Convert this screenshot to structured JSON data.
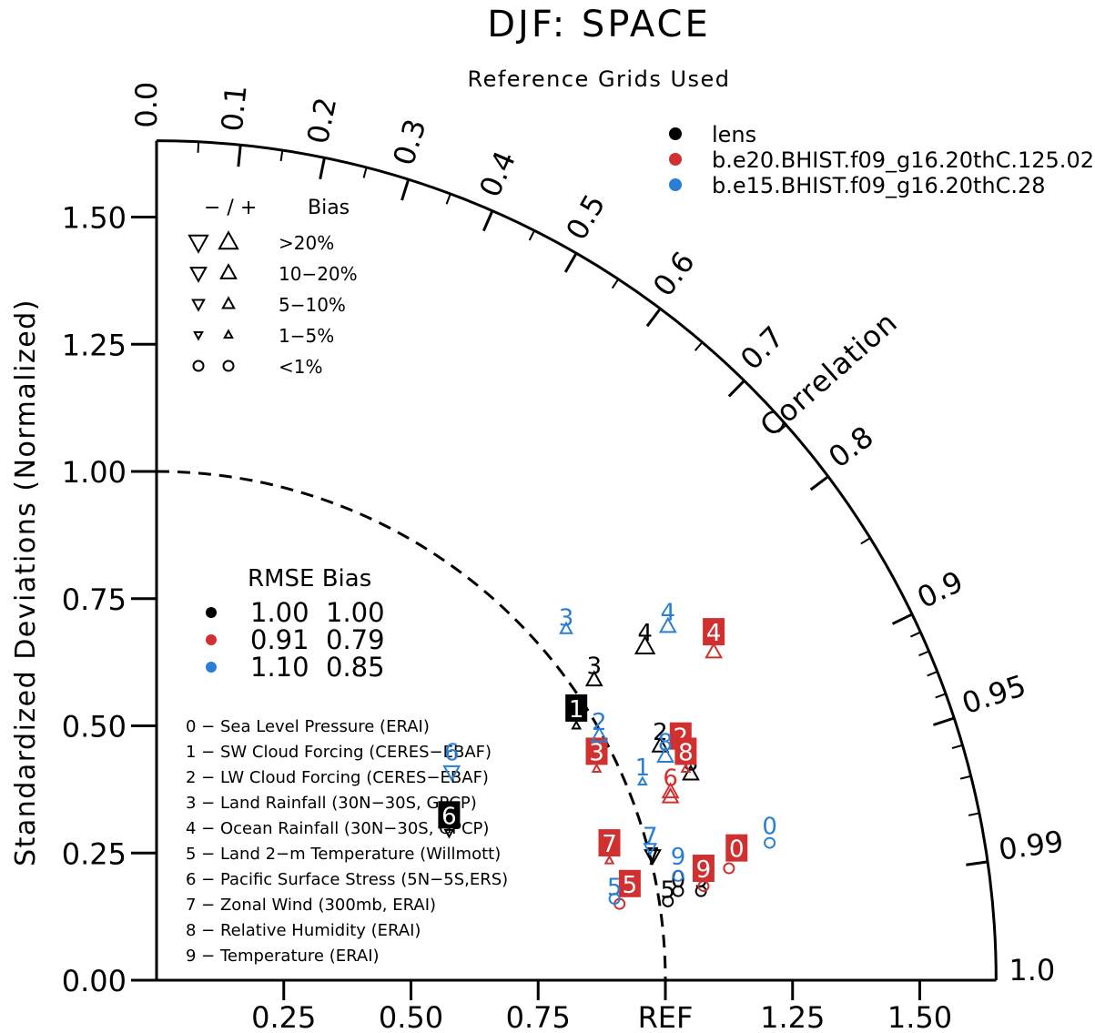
{
  "chart_data": {
    "type": "taylor",
    "title": "DJF: SPACE",
    "subtitle": "Reference Grids Used",
    "ylabel": "Standardized Deviations (Normalized)",
    "xlabel": "",
    "radial_label": "Correlation",
    "ref_label": "REF",
    "std_ylim": [
      0,
      1.65
    ],
    "y_ticks": [
      "0.00",
      "0.25",
      "0.50",
      "0.75",
      "1.00",
      "1.25",
      "1.50"
    ],
    "x_ticks": [
      "0.25",
      "0.50",
      "0.75",
      "REF",
      "1.25",
      "1.50"
    ],
    "corr_ticks": [
      {
        "value": 0.0,
        "label": "0.0"
      },
      {
        "value": 0.1,
        "label": "0.1"
      },
      {
        "value": 0.2,
        "label": "0.2"
      },
      {
        "value": 0.3,
        "label": "0.3"
      },
      {
        "value": 0.4,
        "label": "0.4"
      },
      {
        "value": 0.5,
        "label": "0.5"
      },
      {
        "value": 0.6,
        "label": "0.6"
      },
      {
        "value": 0.7,
        "label": "0.7"
      },
      {
        "value": 0.8,
        "label": "0.8"
      },
      {
        "value": 0.9,
        "label": "0.9"
      },
      {
        "value": 0.95,
        "label": "0.95"
      },
      {
        "value": 0.99,
        "label": "0.99"
      },
      {
        "value": 1.0,
        "label": "1.0"
      }
    ],
    "series": [
      {
        "name": "lens",
        "color": "#000000"
      },
      {
        "name": "b.e20.BHIST.f09_g16.20thC.125.02",
        "color": "#d03030"
      },
      {
        "name": "b.e15.BHIST.f09_g16.20thC.28",
        "color": "#2a7fd4"
      }
    ],
    "bias_legend": {
      "header_symbols": "− / +",
      "header_label": "Bias",
      "rows": [
        {
          "label": ">20%",
          "shape": "triangle",
          "size": 1.0
        },
        {
          "label": "10−20%",
          "shape": "triangle",
          "size": 0.82
        },
        {
          "label": "5−10%",
          "shape": "triangle",
          "size": 0.62
        },
        {
          "label": "1−5%",
          "shape": "triangle",
          "size": 0.42
        },
        {
          "label": "<1%",
          "shape": "circle",
          "size": 0.55
        }
      ]
    },
    "rmse_table": {
      "header": "RMSE Bias",
      "rows": [
        {
          "color": "#000000",
          "rmse": "1.00",
          "bias": "1.00"
        },
        {
          "color": "#d03030",
          "rmse": "0.91",
          "bias": "0.79"
        },
        {
          "color": "#2a7fd4",
          "rmse": "1.10",
          "bias": "0.85"
        }
      ]
    },
    "variables": [
      "0 − Sea Level Pressure (ERAI)",
      "1 − SW Cloud Forcing (CERES−EBAF)",
      "2 − LW Cloud Forcing (CERES−EBAF)",
      "3 − Land Rainfall (30N−30S, GPCP)",
      "4 − Ocean Rainfall (30N−30S, GPCP)",
      "5 − Land 2−m Temperature (Willmott)",
      "6 − Pacific Surface Stress (5N−5S,ERS)",
      "7 − Zonal Wind (300mb, ERAI)",
      "8 − Relative Humidity (ERAI)",
      "9 − Temperature (ERAI)"
    ],
    "points": [
      {
        "series": 0,
        "label": "1",
        "x": 0.825,
        "y": 0.535,
        "boxed": true,
        "sym": "up",
        "size": 0.42,
        "sx": 0.825,
        "sy": 0.5
      },
      {
        "series": 0,
        "label": "2",
        "x": 0.99,
        "y": 0.49,
        "boxed": false,
        "sym": "up",
        "size": 0.82,
        "sx": 0.99,
        "sy": 0.46
      },
      {
        "series": 0,
        "label": "3",
        "x": 0.86,
        "y": 0.62,
        "boxed": false,
        "sym": "up",
        "size": 0.82,
        "sx": 0.86,
        "sy": 0.59
      },
      {
        "series": 0,
        "label": "4",
        "x": 0.96,
        "y": 0.685,
        "boxed": false,
        "sym": "up",
        "size": 1.0,
        "sx": 0.96,
        "sy": 0.655
      },
      {
        "series": 0,
        "label": "5",
        "x": 1.005,
        "y": 0.18,
        "boxed": false,
        "sym": "circle",
        "size": 0.55,
        "sx": 1.005,
        "sy": 0.155
      },
      {
        "series": 0,
        "label": "6",
        "x": 0.575,
        "y": 0.325,
        "boxed": true,
        "sym": "down",
        "size": 0.42,
        "sx": 0.575,
        "sy": 0.29
      },
      {
        "series": 0,
        "label": "7",
        "x": 0.975,
        "y": 0.245,
        "boxed": false,
        "sym": "down",
        "size": 0.82,
        "sx": 0.975,
        "sy": 0.245
      },
      {
        "series": 0,
        "label": "8",
        "x": 1.05,
        "y": 0.43,
        "boxed": false,
        "sym": "up",
        "size": 0.82,
        "sx": 1.05,
        "sy": 0.405
      },
      {
        "series": 0,
        "label": "9",
        "x": 1.07,
        "y": 0.2,
        "boxed": false,
        "sym": "circle",
        "size": 0.55,
        "sx": 1.07,
        "sy": 0.175
      },
      {
        "series": 0,
        "label": "0",
        "x": 1.025,
        "y": 0.2,
        "boxed": false,
        "sym": "circle",
        "size": 0.55,
        "sx": 1.025,
        "sy": 0.175
      },
      {
        "series": 1,
        "label": "0",
        "x": 1.14,
        "y": 0.26,
        "boxed": true,
        "sym": "circle",
        "size": 0.55,
        "sx": 1.125,
        "sy": 0.22
      },
      {
        "series": 1,
        "label": "2",
        "x": 1.03,
        "y": 0.48,
        "boxed": true,
        "sym": "up",
        "size": 0.82,
        "sx": 1.01,
        "sy": 0.37
      },
      {
        "series": 1,
        "label": "3",
        "x": 0.865,
        "y": 0.45,
        "boxed": true,
        "sym": "up",
        "size": 0.42,
        "sx": 0.865,
        "sy": 0.415
      },
      {
        "series": 1,
        "label": "4",
        "x": 1.095,
        "y": 0.685,
        "boxed": true,
        "sym": "up",
        "size": 0.82,
        "sx": 1.095,
        "sy": 0.645
      },
      {
        "series": 1,
        "label": "5",
        "x": 0.93,
        "y": 0.19,
        "boxed": true,
        "sym": "circle",
        "size": 0.55,
        "sx": 0.91,
        "sy": 0.15
      },
      {
        "series": 1,
        "label": "6",
        "x": 1.01,
        "y": 0.4,
        "boxed": false,
        "sym": "up",
        "size": 0.82,
        "sx": 1.01,
        "sy": 0.36
      },
      {
        "series": 1,
        "label": "7",
        "x": 0.89,
        "y": 0.27,
        "boxed": true,
        "sym": "up",
        "size": 0.42,
        "sx": 0.89,
        "sy": 0.235
      },
      {
        "series": 1,
        "label": "8",
        "x": 1.04,
        "y": 0.45,
        "boxed": true,
        "sym": "up",
        "size": 0.42,
        "sx": 1.04,
        "sy": 0.415
      },
      {
        "series": 1,
        "label": "9",
        "x": 1.075,
        "y": 0.22,
        "boxed": true,
        "sym": "circle",
        "size": 0.55,
        "sx": 1.075,
        "sy": 0.185
      },
      {
        "series": 2,
        "label": "0",
        "x": 1.205,
        "y": 0.305,
        "boxed": false,
        "sym": "circle",
        "size": 0.55,
        "sx": 1.205,
        "sy": 0.27
      },
      {
        "series": 2,
        "label": "1",
        "x": 0.955,
        "y": 0.42,
        "boxed": false,
        "sym": "up",
        "size": 0.42,
        "sx": 0.955,
        "sy": 0.39
      },
      {
        "series": 2,
        "label": "2",
        "x": 0.87,
        "y": 0.51,
        "boxed": false,
        "sym": "up",
        "size": 0.82,
        "sx": 0.87,
        "sy": 0.48
      },
      {
        "series": 2,
        "label": "3",
        "x": 0.805,
        "y": 0.715,
        "boxed": false,
        "sym": "up",
        "size": 0.62,
        "sx": 0.805,
        "sy": 0.69
      },
      {
        "series": 2,
        "label": "4",
        "x": 1.005,
        "y": 0.725,
        "boxed": false,
        "sym": "up",
        "size": 0.82,
        "sx": 1.005,
        "sy": 0.695
      },
      {
        "series": 2,
        "label": "5",
        "x": 0.9,
        "y": 0.185,
        "boxed": false,
        "sym": "circle",
        "size": 0.55,
        "sx": 0.9,
        "sy": 0.16
      },
      {
        "series": 2,
        "label": "6",
        "x": 0.58,
        "y": 0.45,
        "boxed": false,
        "sym": "down",
        "size": 0.82,
        "sx": 0.58,
        "sy": 0.41
      },
      {
        "series": 2,
        "label": "7",
        "x": 0.97,
        "y": 0.285,
        "boxed": false,
        "sym": "down",
        "size": 0.62,
        "sx": 0.97,
        "sy": 0.26
      },
      {
        "series": 2,
        "label": "8",
        "x": 1.0,
        "y": 0.47,
        "boxed": false,
        "sym": "up",
        "size": 0.82,
        "sx": 1.0,
        "sy": 0.44
      },
      {
        "series": 2,
        "label": "9",
        "x": 1.025,
        "y": 0.245,
        "boxed": false,
        "sym": "circle",
        "size": 0.55,
        "sx": 1.025,
        "sy": 0.205
      }
    ]
  }
}
